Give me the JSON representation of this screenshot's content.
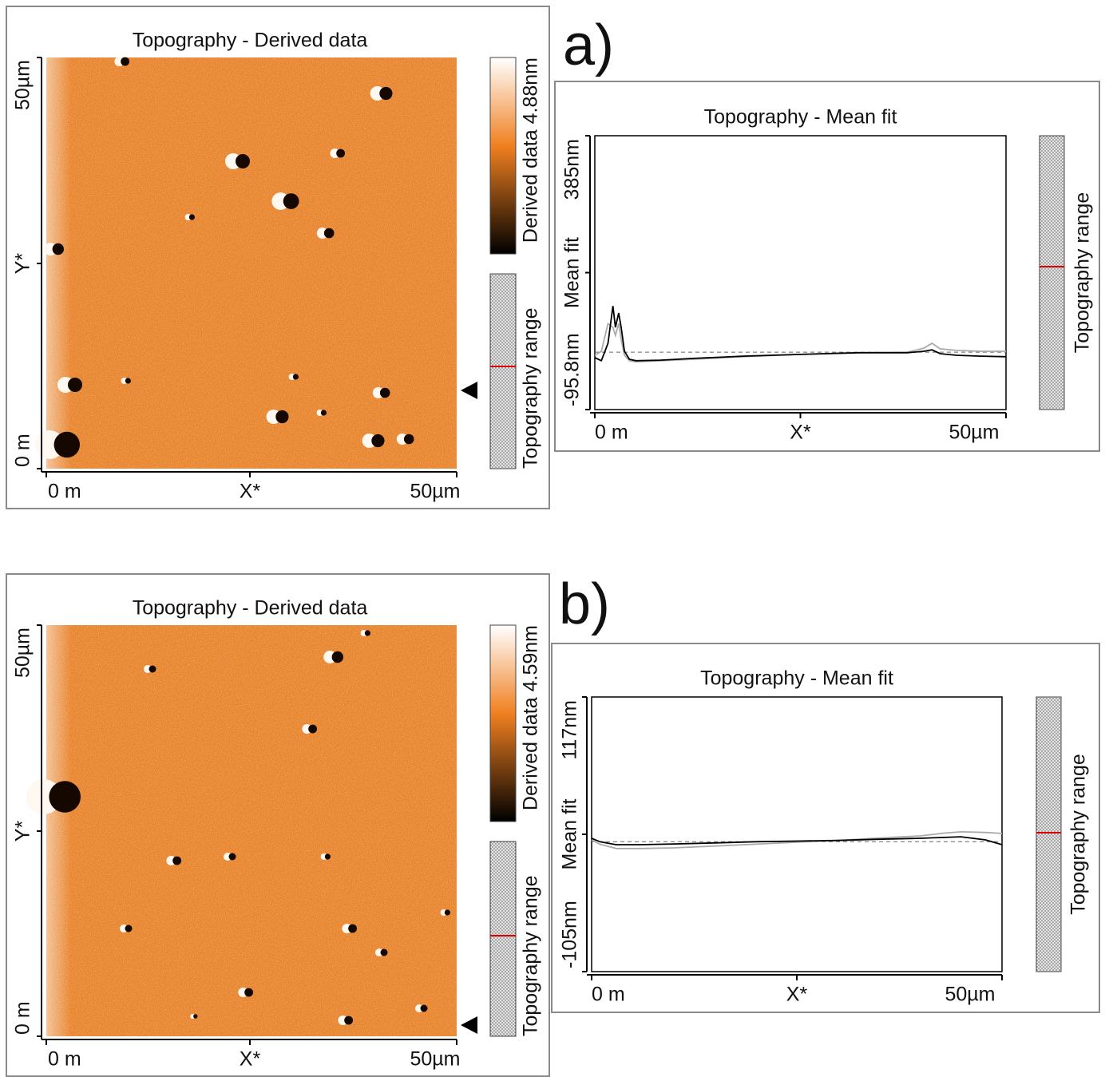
{
  "panels": [
    {
      "label": "a)",
      "image": {
        "title": "Topography - Derived data",
        "x_labels": [
          "0 m",
          "X*",
          "50µm"
        ],
        "y_labels": [
          "0 m",
          "Y*",
          "50µm"
        ],
        "colorbar_label": "Derived data 4.88nm",
        "range_label": "Topography range"
      },
      "range_label": "Topography range"
    },
    {
      "label": "b)",
      "image": {
        "title": "Topography - Derived data",
        "x_labels": [
          "0 m",
          "X*",
          "50µm"
        ],
        "y_labels": [
          "0 m",
          "Y*",
          "50µm"
        ],
        "colorbar_label": "Derived data 4.59nm",
        "range_label": "Topography range"
      },
      "range_label": "Topography range"
    }
  ],
  "chart_data": [
    {
      "type": "line",
      "title": "Topography - Mean fit",
      "xlabel": "X*",
      "ylabel": "Mean fit",
      "xlim": [
        0,
        50
      ],
      "xticks": [
        {
          "value": 0,
          "label": "0 m"
        },
        {
          "value": 50,
          "label": "50µm"
        }
      ],
      "ylim": [
        -95.8,
        385
      ],
      "yticks": [
        {
          "value": -95.8,
          "label": "-95.8nm"
        },
        {
          "value": 385,
          "label": "385nm"
        }
      ],
      "reference_line": 5,
      "x": [
        0,
        0.8,
        1.6,
        2.2,
        2.5,
        2.9,
        3.2,
        3.6,
        4.2,
        5,
        8,
        12,
        18,
        25,
        32,
        38,
        40,
        41,
        42,
        44,
        47,
        50
      ],
      "series": [
        {
          "color": "#aaaaaa",
          "values": [
            -0.5,
            6.5,
            55,
            48.6,
            34.6,
            55,
            27.6,
            -0.5,
            -10,
            -12,
            -10,
            -7.5,
            -3,
            1,
            4,
            5,
            12,
            20.6,
            10.7,
            8,
            6.5,
            6.5
          ]
        },
        {
          "color": "#000000",
          "values": [
            -4.7,
            -10,
            20.6,
            86,
            48.6,
            73.8,
            48.6,
            6.5,
            -7.5,
            -10,
            -9,
            -6,
            -2,
            1,
            4,
            4,
            6.5,
            9,
            2.3,
            -0.5,
            -2,
            -3
          ]
        }
      ]
    },
    {
      "type": "line",
      "title": "Topography - Mean fit",
      "xlabel": "X*",
      "ylabel": "Mean fit",
      "xlim": [
        0,
        50
      ],
      "xticks": [
        {
          "value": 0,
          "label": "0 m"
        },
        {
          "value": 50,
          "label": "50µm"
        }
      ],
      "ylim": [
        -105,
        117
      ],
      "yticks": [
        {
          "value": -105,
          "label": "-105nm"
        },
        {
          "value": 117,
          "label": "117nm"
        }
      ],
      "reference_line": 0,
      "x": [
        0,
        1,
        3,
        6,
        10,
        15,
        20,
        25,
        30,
        35,
        40,
        43,
        45,
        48,
        50
      ],
      "series": [
        {
          "color": "#aaaaaa",
          "values": [
            1.5,
            -2,
            -5.5,
            -5.5,
            -5,
            -3.5,
            -2,
            -0.4,
            1,
            3,
            4.7,
            7,
            8,
            7.5,
            6.7
          ]
        },
        {
          "color": "#000000",
          "values": [
            2.8,
            0,
            -2.4,
            -2.4,
            -1.8,
            -1,
            0,
            0.5,
            1,
            2,
            2.8,
            3.5,
            4,
            1.5,
            -2.4
          ]
        }
      ]
    }
  ]
}
